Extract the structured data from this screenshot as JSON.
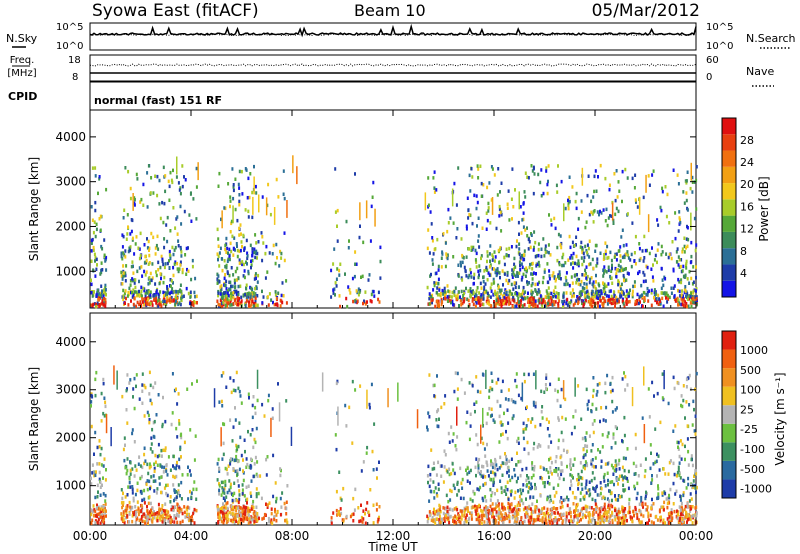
{
  "header": {
    "station": "Syowa East (fitACF)",
    "beam": "Beam 10",
    "date": "05/Mar/2012"
  },
  "panels": {
    "nsky_label": "N.Sky",
    "nsearch_label": "N.Search",
    "nsky_ticks": [
      "10^5",
      "10^0"
    ],
    "nsearch_ticks": [
      "10^5",
      "10^0"
    ],
    "freq_label": "Freq.",
    "freq_unit": "[MHz]",
    "freq_ticks": [
      "18",
      "8"
    ],
    "nave_label": "Nave",
    "nave_ticks": [
      "60",
      "0"
    ],
    "cpid_label": "CPID",
    "cpid_text": "normal (fast) 151 RF"
  },
  "colors": {
    "power_scale": [
      "#1414e6",
      "#1e3ca8",
      "#2b6f96",
      "#3c8c5a",
      "#55a838",
      "#a8cc2a",
      "#f2c81c",
      "#f2a014",
      "#f07010",
      "#e84010",
      "#e01010"
    ],
    "velocity_scale": [
      "#1e3ca8",
      "#2a6aa0",
      "#3c9060",
      "#6cc040",
      "#b4b4b4",
      "#f0c020",
      "#f09020",
      "#f06010",
      "#e02010"
    ]
  },
  "chart_data": [
    {
      "type": "heatmap",
      "name": "power",
      "ylabel": "Slant Range [km]",
      "ylim": [
        180,
        4600
      ],
      "yticks": [
        "1000",
        "2000",
        "3000",
        "4000"
      ],
      "colorbar_label": "Power [dB]",
      "colorbar_ticks": [
        "4",
        "8",
        "12",
        "16",
        "20",
        "24",
        "28"
      ]
    },
    {
      "type": "heatmap",
      "name": "velocity",
      "ylabel": "Slant Range [km]",
      "ylim": [
        180,
        4600
      ],
      "yticks": [
        "1000",
        "2000",
        "3000",
        "4000"
      ],
      "colorbar_label": "Velocity [m s⁻¹]",
      "colorbar_ticks": [
        "1000",
        "500",
        "100",
        "25",
        "-25",
        "-100",
        "-500",
        "-1000"
      ],
      "xlabel": "Time UT",
      "xticks": [
        "00:00",
        "04:00",
        "08:00",
        "12:00",
        "16:00",
        "20:00",
        "00:00"
      ],
      "xlim": [
        0,
        24
      ]
    }
  ]
}
